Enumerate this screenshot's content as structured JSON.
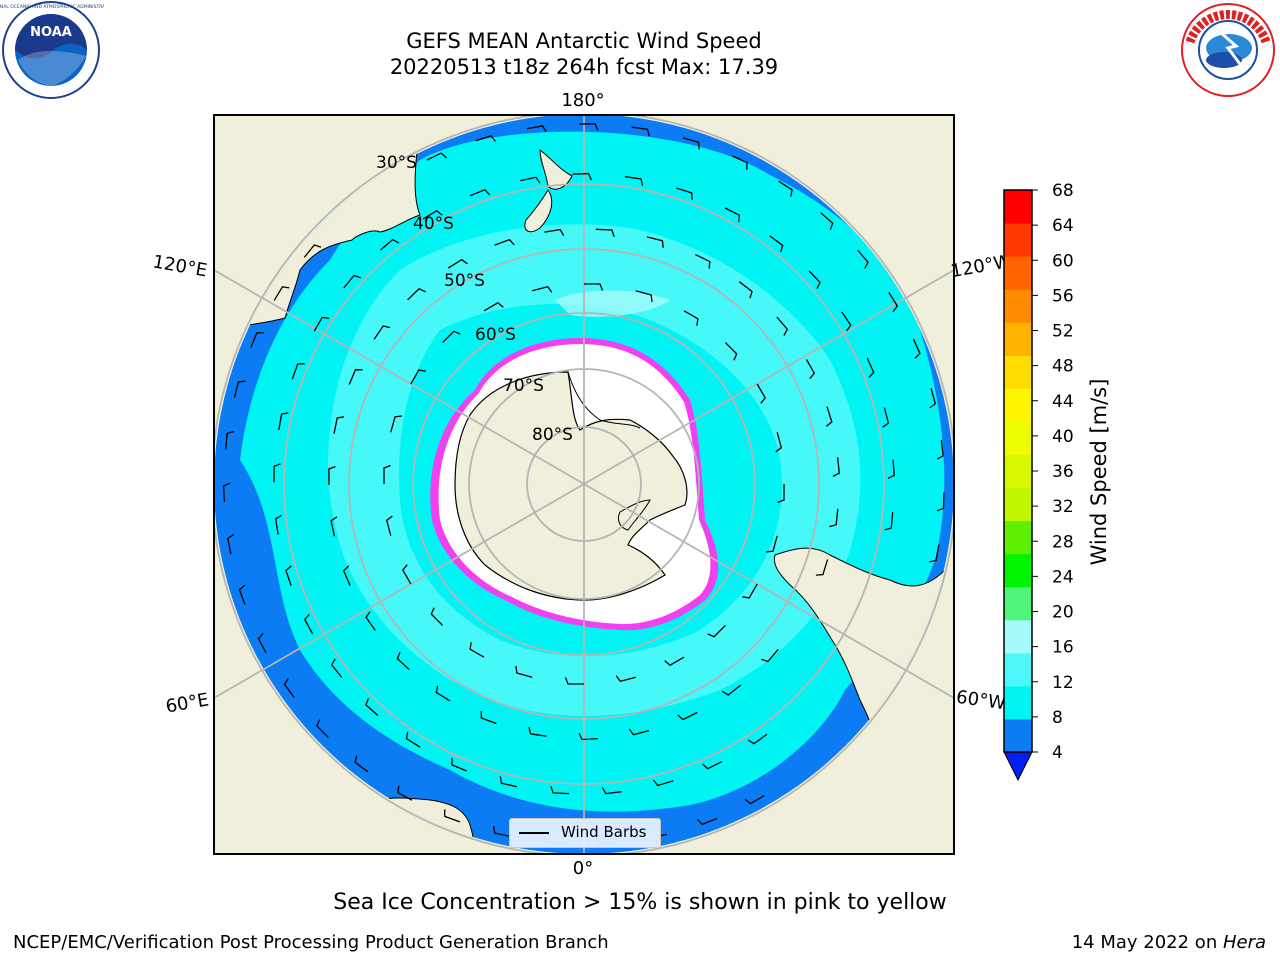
{
  "title": {
    "line1": "GEFS MEAN Antarctic Wind Speed",
    "line2": "20220513 t18z 264h fcst   Max: 17.39"
  },
  "map": {
    "projection": "south polar stereographic",
    "longitude_labels": [
      "180°",
      "120°E",
      "120°W",
      "60°E",
      "60°W",
      "0°"
    ],
    "latitude_labels": [
      "30°S",
      "40°S",
      "50°S",
      "60°S",
      "70°S",
      "80°S"
    ],
    "legend_label": "Wind Barbs",
    "colors": {
      "land": "#efefdb",
      "ocean_low": "#0c7cf4",
      "ocean_mid": "#00f4f4",
      "ocean_high": "#4ef8f8",
      "ocean_peak": "#a6fafa",
      "sea_ice": "#ffffff",
      "ice_edge": [
        "#f040f0",
        "#ffb000",
        "#ffe000"
      ]
    }
  },
  "colorbar": {
    "label": "Wind Speed [m/s]",
    "ticks": [
      "4",
      "8",
      "12",
      "16",
      "20",
      "24",
      "28",
      "32",
      "36",
      "40",
      "44",
      "48",
      "52",
      "56",
      "60",
      "64",
      "68"
    ],
    "colors": [
      "#0c7cf4",
      "#00f4f4",
      "#4ef8f8",
      "#a6fafa",
      "#4ef57a",
      "#00f300",
      "#5ef000",
      "#bff600",
      "#d8f800",
      "#eefc00",
      "#fff600",
      "#ffdd00",
      "#ffb300",
      "#ff8c00",
      "#ff6400",
      "#ff3900",
      "#ff0000"
    ],
    "under_color": "#0020f4"
  },
  "caption": "Sea Ice Concentration > 15% is shown in pink to yellow",
  "footer": {
    "left": "NCEP/EMC/Verification Post Processing Product Generation Branch",
    "right_date": "14 May 2022 on ",
    "right_host": "Hera"
  },
  "logos": {
    "noaa": "NOAA",
    "nws": "NATIONAL WEATHER SERVICE"
  }
}
